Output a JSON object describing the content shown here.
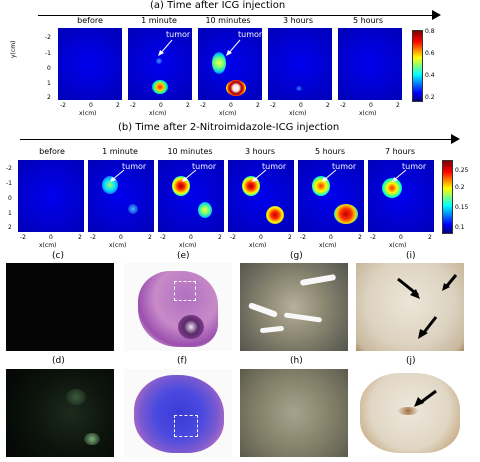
{
  "row_a": {
    "title": "(a) Time after ICG injection",
    "labels": [
      "before",
      "1 minute",
      "10 minutes",
      "3 hours",
      "5 hours"
    ],
    "tumor_label": "tumor",
    "colorbar_ticks": [
      "0.8",
      "0.6",
      "0.4",
      "0.2"
    ],
    "x_ticks": [
      "-2",
      "0",
      "2"
    ],
    "y_ticks": [
      "-2",
      "-1",
      "0",
      "1",
      "2"
    ],
    "xlabel": "x(cm)",
    "ylabel": "y(cm)"
  },
  "row_b": {
    "title": "(b) Time after 2-Nitroimidazole-ICG injection",
    "labels": [
      "before",
      "1 minute",
      "10 minutes",
      "3 hours",
      "5 hours",
      "7 hours"
    ],
    "tumor_label": "tumor",
    "colorbar_ticks": [
      "0.25",
      "0.2",
      "0.15",
      "0.1"
    ],
    "x_ticks": [
      "-2",
      "0",
      "2"
    ],
    "y_ticks": [
      "-2",
      "-1",
      "0",
      "1",
      "2"
    ],
    "xlabel": "x(cm)"
  },
  "subfigures": [
    "(c)",
    "(e)",
    "(g)",
    "(i)",
    "(d)",
    "(f)",
    "(h)",
    "(j)"
  ],
  "colors": {
    "panel_bg": "#0000cc",
    "histo_pink": "#c88ac8",
    "dapi_blue": "#3a3ad8"
  }
}
